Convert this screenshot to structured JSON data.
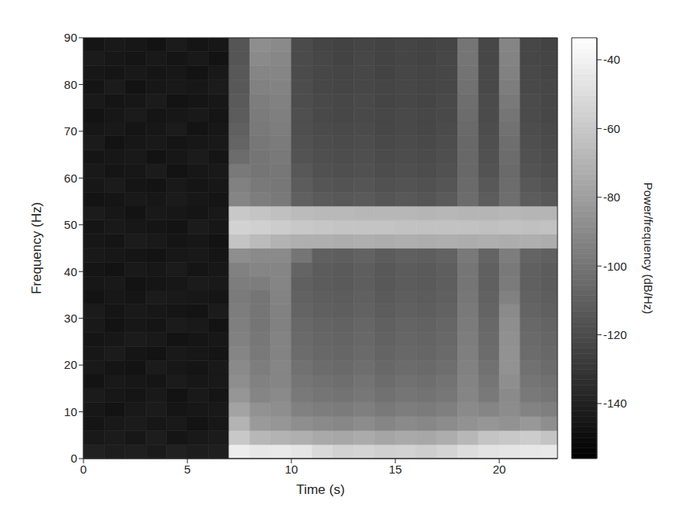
{
  "chart_data": {
    "type": "heatmap",
    "x_label": "Time (s)",
    "y_label": "Frequency (Hz)",
    "xlim": [
      0,
      22.8
    ],
    "xticks": [
      0,
      5,
      10,
      15,
      20
    ],
    "ylim": [
      0,
      90
    ],
    "yticks": [
      0,
      10,
      20,
      30,
      40,
      50,
      60,
      70,
      80,
      90
    ],
    "x_edges": [
      0,
      1,
      2,
      3,
      4,
      5,
      6,
      7,
      8,
      9,
      10,
      11,
      12,
      13,
      14,
      15,
      16,
      17,
      18,
      19,
      20,
      21,
      22,
      22.8
    ],
    "y_edges": [
      0,
      3,
      6,
      9,
      12,
      15,
      18,
      21,
      24,
      27,
      30,
      33,
      36,
      39,
      42,
      45,
      48,
      51,
      54,
      57,
      60,
      63,
      66,
      69,
      72,
      75,
      78,
      81,
      84,
      87,
      90
    ],
    "cells": [
      [
        -140,
        -142,
        -141,
        -143,
        -140,
        -142,
        -141,
        -42,
        -45,
        -44,
        -46,
        -52,
        -55,
        -54,
        -56,
        -55,
        -57,
        -54,
        -50,
        -47,
        -46,
        -45,
        -44
      ],
      [
        -144,
        -143,
        -145,
        -142,
        -146,
        -144,
        -143,
        -60,
        -68,
        -70,
        -72,
        -75,
        -76,
        -74,
        -77,
        -75,
        -76,
        -73,
        -68,
        -62,
        -60,
        -58,
        -62
      ],
      [
        -146,
        -144,
        -143,
        -145,
        -144,
        -147,
        -145,
        -70,
        -82,
        -84,
        -88,
        -90,
        -91,
        -89,
        -92,
        -90,
        -91,
        -89,
        -86,
        -84,
        -86,
        -83,
        -88
      ],
      [
        -145,
        -147,
        -144,
        -143,
        -146,
        -145,
        -144,
        -78,
        -86,
        -88,
        -94,
        -96,
        -97,
        -95,
        -98,
        -96,
        -97,
        -95,
        -90,
        -92,
        -89,
        -93,
        -95
      ],
      [
        -143,
        -145,
        -146,
        -144,
        -147,
        -144,
        -146,
        -84,
        -92,
        -90,
        -98,
        -100,
        -101,
        -99,
        -102,
        -100,
        -101,
        -99,
        -92,
        -98,
        -90,
        -98,
        -100
      ],
      [
        -147,
        -144,
        -145,
        -146,
        -143,
        -145,
        -144,
        -88,
        -94,
        -92,
        -100,
        -102,
        -103,
        -101,
        -104,
        -102,
        -103,
        -101,
        -93,
        -100,
        -88,
        -100,
        -102
      ],
      [
        -144,
        -146,
        -147,
        -143,
        -145,
        -146,
        -144,
        -90,
        -96,
        -92,
        -102,
        -104,
        -105,
        -103,
        -106,
        -104,
        -105,
        -103,
        -94,
        -102,
        -86,
        -102,
        -104
      ],
      [
        -145,
        -143,
        -146,
        -147,
        -144,
        -145,
        -146,
        -92,
        -98,
        -93,
        -104,
        -106,
        -107,
        -105,
        -108,
        -106,
        -107,
        -105,
        -95,
        -104,
        -86,
        -104,
        -106
      ],
      [
        -146,
        -145,
        -143,
        -144,
        -147,
        -146,
        -145,
        -94,
        -99,
        -93,
        -105,
        -107,
        -108,
        -106,
        -109,
        -107,
        -108,
        -106,
        -96,
        -105,
        -87,
        -105,
        -107
      ],
      [
        -144,
        -147,
        -145,
        -146,
        -143,
        -144,
        -147,
        -95,
        -100,
        -94,
        -106,
        -108,
        -109,
        -107,
        -110,
        -108,
        -109,
        -107,
        -97,
        -106,
        -88,
        -106,
        -108
      ],
      [
        -143,
        -146,
        -144,
        -145,
        -146,
        -147,
        -143,
        -96,
        -100,
        -94,
        -108,
        -110,
        -111,
        -109,
        -112,
        -110,
        -111,
        -109,
        -98,
        -108,
        -90,
        -108,
        -110
      ],
      [
        -147,
        -145,
        -146,
        -143,
        -144,
        -145,
        -146,
        -97,
        -100,
        -93,
        -109,
        -111,
        -112,
        -110,
        -113,
        -111,
        -112,
        -110,
        -99,
        -109,
        -94,
        -109,
        -111
      ],
      [
        -145,
        -144,
        -147,
        -146,
        -145,
        -143,
        -144,
        -96,
        -96,
        -92,
        -110,
        -112,
        -113,
        -111,
        -114,
        -112,
        -113,
        -111,
        -100,
        -110,
        -97,
        -110,
        -112
      ],
      [
        -146,
        -147,
        -144,
        -145,
        -143,
        -146,
        -145,
        -94,
        -92,
        -92,
        -108,
        -112,
        -113,
        -111,
        -114,
        -112,
        -113,
        -111,
        -100,
        -110,
        -98,
        -110,
        -112
      ],
      [
        -144,
        -145,
        -146,
        -147,
        -145,
        -144,
        -146,
        -88,
        -90,
        -90,
        -100,
        -110,
        -111,
        -109,
        -112,
        -110,
        -111,
        -109,
        -98,
        -108,
        -96,
        -108,
        -110
      ],
      [
        -145,
        -146,
        -143,
        -144,
        -146,
        -145,
        -147,
        -62,
        -66,
        -70,
        -72,
        -72,
        -73,
        -72,
        -73,
        -72,
        -73,
        -72,
        -73,
        -72,
        -73,
        -72,
        -73
      ],
      [
        -146,
        -144,
        -145,
        -146,
        -147,
        -143,
        -145,
        -55,
        -56,
        -58,
        -60,
        -61,
        -62,
        -62,
        -62,
        -63,
        -63,
        -63,
        -63,
        -64,
        -63,
        -64,
        -63
      ],
      [
        -143,
        -145,
        -147,
        -144,
        -145,
        -146,
        -144,
        -60,
        -62,
        -64,
        -66,
        -67,
        -67,
        -68,
        -68,
        -68,
        -69,
        -68,
        -69,
        -69,
        -68,
        -69,
        -69
      ],
      [
        -147,
        -146,
        -144,
        -145,
        -143,
        -145,
        -146,
        -92,
        -96,
        -98,
        -110,
        -113,
        -114,
        -113,
        -115,
        -114,
        -115,
        -113,
        -104,
        -112,
        -103,
        -112,
        -114
      ],
      [
        -145,
        -143,
        -146,
        -147,
        -144,
        -146,
        -145,
        -94,
        -98,
        -99,
        -112,
        -115,
        -116,
        -115,
        -117,
        -116,
        -117,
        -115,
        -105,
        -114,
        -104,
        -114,
        -116
      ],
      [
        -144,
        -146,
        -145,
        -143,
        -147,
        -145,
        -144,
        -98,
        -100,
        -99,
        -114,
        -117,
        -118,
        -117,
        -119,
        -118,
        -119,
        -117,
        -106,
        -116,
        -105,
        -116,
        -118
      ],
      [
        -146,
        -145,
        -144,
        -147,
        -145,
        -143,
        -146,
        -104,
        -100,
        -98,
        -116,
        -118,
        -119,
        -118,
        -120,
        -119,
        -120,
        -118,
        -106,
        -117,
        -104,
        -117,
        -119
      ],
      [
        -143,
        -147,
        -145,
        -144,
        -146,
        -145,
        -144,
        -108,
        -99,
        -97,
        -117,
        -119,
        -120,
        -119,
        -121,
        -120,
        -121,
        -119,
        -106,
        -118,
        -103,
        -118,
        -120
      ],
      [
        -145,
        -144,
        -146,
        -145,
        -143,
        -147,
        -145,
        -110,
        -98,
        -96,
        -118,
        -120,
        -121,
        -120,
        -122,
        -121,
        -122,
        -120,
        -105,
        -119,
        -102,
        -119,
        -121
      ],
      [
        -147,
        -145,
        -143,
        -146,
        -145,
        -144,
        -146,
        -112,
        -97,
        -95,
        -118,
        -121,
        -122,
        -121,
        -122,
        -121,
        -122,
        -121,
        -104,
        -120,
        -100,
        -120,
        -122
      ],
      [
        -144,
        -146,
        -145,
        -143,
        -147,
        -146,
        -145,
        -113,
        -96,
        -94,
        -119,
        -121,
        -122,
        -121,
        -123,
        -122,
        -123,
        -121,
        -103,
        -120,
        -98,
        -120,
        -122
      ],
      [
        -146,
        -143,
        -147,
        -145,
        -144,
        -145,
        -143,
        -114,
        -94,
        -93,
        -119,
        -122,
        -123,
        -122,
        -123,
        -122,
        -123,
        -122,
        -102,
        -121,
        -96,
        -121,
        -122
      ],
      [
        -145,
        -146,
        -144,
        -146,
        -145,
        -147,
        -144,
        -114,
        -92,
        -92,
        -120,
        -122,
        -123,
        -122,
        -124,
        -122,
        -123,
        -122,
        -101,
        -121,
        -94,
        -121,
        -123
      ],
      [
        -143,
        -145,
        -146,
        -144,
        -146,
        -144,
        -147,
        -115,
        -90,
        -91,
        -120,
        -122,
        -124,
        -122,
        -124,
        -123,
        -124,
        -122,
        -100,
        -122,
        -93,
        -122,
        -123
      ],
      [
        -146,
        -144,
        -145,
        -147,
        -143,
        -146,
        -145,
        -115,
        -88,
        -90,
        -120,
        -123,
        -124,
        -123,
        -124,
        -123,
        -124,
        -123,
        -100,
        -122,
        -92,
        -122,
        -124
      ]
    ],
    "colorbar": {
      "label": "Power/frequency (dB/Hz)",
      "range": [
        -156,
        -33.6
      ],
      "ticks": [
        -140,
        -120,
        -100,
        -80,
        -60,
        -40
      ]
    }
  }
}
